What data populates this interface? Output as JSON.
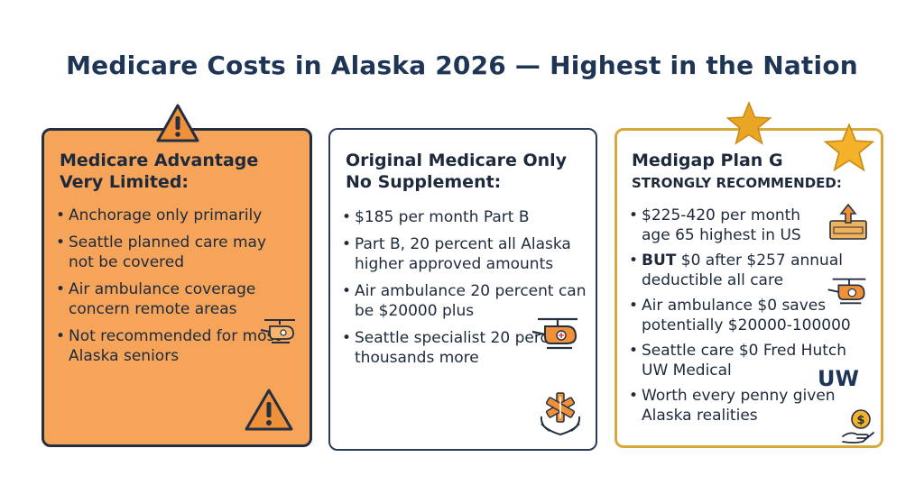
{
  "title": "Medicare Costs in Alaska 2026 — Highest in the Nation",
  "cards": [
    {
      "heading": "Medicare Advantage Very Limited:",
      "bullets": [
        "Anchorage only primarily",
        "Seattle planned care may not be covered",
        "Air ambulance coverage concern remote areas",
        "Not recommended for most Alaska seniors"
      ]
    },
    {
      "heading": "Original Medicare Only No Supplement:",
      "bullets": [
        "$185 per month Part B",
        "Part B, 20 percent all Alaska higher approved amounts",
        "Air ambulance 20 percent can be $20000 plus",
        "Seattle specialist 20 percent thousands more"
      ]
    },
    {
      "heading": "Medigap Plan G",
      "subheading": "STRONGLY RECOMMENDED:",
      "bullets": [
        "$225-420 per month age 65 highest in US",
        "$0 after $257 annual deductible all care",
        "Air ambulance $0 saves potentially $20000-100000",
        "Seattle care $0 Fred Hutch UW Medical",
        "Worth every penny given Alaska realities"
      ],
      "bullet2_prefix": "BUT",
      "uw_mark": "UW"
    }
  ],
  "colors": {
    "title": "#1f3556",
    "card1_bg": "#f5a45a",
    "card3_border": "#d7a83c",
    "star": "#e9a625",
    "icon_orange": "#e48a2b"
  },
  "icons": [
    "warning-icon",
    "helicopter-icon",
    "star-of-life-icon",
    "star-icon",
    "price-up-icon",
    "dollar-hand-icon"
  ]
}
